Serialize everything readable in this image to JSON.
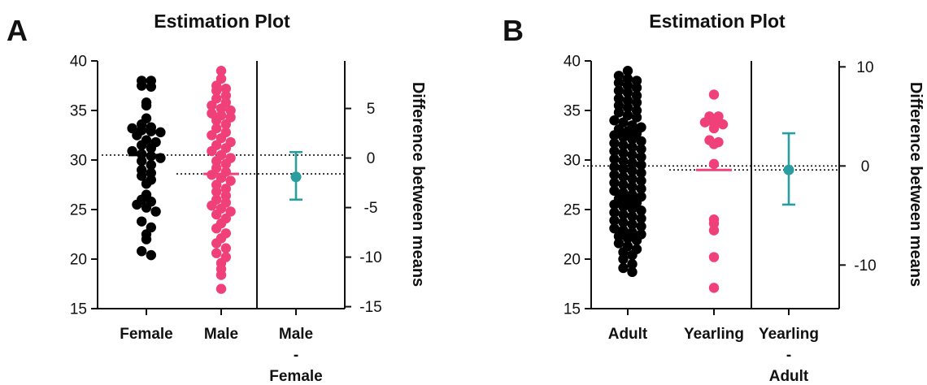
{
  "colors": {
    "group1": "#000000",
    "group2": "#f0407a",
    "difference": "#2a9d9f",
    "axis": "#111111"
  },
  "chart_data": [
    {
      "panel": "A",
      "type": "scatter",
      "title": "Estimation Plot",
      "ylim": [
        15,
        40
      ],
      "yticks": [
        15,
        20,
        25,
        30,
        35,
        40
      ],
      "right_label": "Difference between means",
      "right_ylim": [
        -15.2,
        9.8
      ],
      "right_ticks": [
        5,
        0,
        -5,
        -10,
        -15
      ],
      "categories": [
        {
          "lines": [
            "Female"
          ]
        },
        {
          "lines": [
            "Male"
          ]
        },
        {
          "lines": [
            "Male",
            "-",
            "Female"
          ]
        }
      ],
      "series": [
        {
          "name": "Female",
          "mean": 30.5,
          "values": [
            38,
            38,
            37.5,
            37.4,
            35.8,
            35.5,
            34.2,
            33.6,
            33.3,
            33.2,
            33.0,
            32.9,
            32.8,
            32.5,
            32.0,
            31.8,
            31.5,
            31.2,
            30.9,
            30.6,
            30.4,
            30.2,
            29.9,
            29.5,
            29.0,
            28.7,
            28.4,
            28.0,
            27.6,
            26.5,
            26.0,
            25.8,
            25.5,
            25.2,
            24.8,
            23.8,
            23.2,
            22.5,
            22.0,
            20.8,
            20.4
          ]
        },
        {
          "name": "Male",
          "mean": 28.6,
          "values": [
            39,
            38.2,
            37.5,
            37.2,
            37.0,
            36.5,
            36.2,
            35.8,
            35.5,
            35.2,
            35.0,
            34.7,
            34.5,
            34.3,
            34.0,
            33.6,
            33.2,
            32.8,
            32.5,
            32.2,
            31.8,
            31.5,
            31.2,
            30.9,
            30.5,
            30.2,
            29.9,
            29.6,
            29.2,
            28.8,
            28.5,
            28.2,
            27.9,
            27.5,
            27.1,
            26.8,
            26.4,
            26.0,
            25.7,
            25.4,
            25.1,
            24.8,
            24.5,
            24.1,
            23.6,
            23.1,
            22.6,
            22.1,
            21.6,
            21.1,
            20.6,
            20.2,
            19.6,
            19.0,
            18.4,
            17.0
          ]
        }
      ],
      "difference": {
        "mean": -1.9,
        "ci": [
          -4.2,
          0.6
        ]
      }
    },
    {
      "panel": "B",
      "type": "scatter",
      "title": "Estimation Plot",
      "ylim": [
        15,
        40
      ],
      "yticks": [
        15,
        20,
        25,
        30,
        35,
        40
      ],
      "right_label": "Difference between means",
      "right_ylim": [
        -14.4,
        10.6
      ],
      "right_ticks": [
        10,
        0,
        -10
      ],
      "categories": [
        {
          "lines": [
            "Adult"
          ]
        },
        {
          "lines": [
            "Yearling"
          ]
        },
        {
          "lines": [
            "Yearling",
            "-",
            "Adult"
          ]
        }
      ],
      "series": [
        {
          "name": "Adult",
          "mean": 29.4,
          "values": [
            39.0,
            38.5,
            38.2,
            38.0,
            37.8,
            37.5,
            37.3,
            37.0,
            36.8,
            36.5,
            36.2,
            36.0,
            35.8,
            35.5,
            35.3,
            35.0,
            34.8,
            34.5,
            34.3,
            34.0,
            33.8,
            33.5,
            33.3,
            33.1,
            32.9,
            32.7,
            32.5,
            32.3,
            32.1,
            31.9,
            31.7,
            31.5,
            31.3,
            31.1,
            30.9,
            30.7,
            30.5,
            30.3,
            30.1,
            29.9,
            29.7,
            29.5,
            29.3,
            29.1,
            28.9,
            28.7,
            28.5,
            28.3,
            28.1,
            27.9,
            27.7,
            27.5,
            27.3,
            27.1,
            26.9,
            26.7,
            26.5,
            26.3,
            26.1,
            25.9,
            25.7,
            25.5,
            25.3,
            25.1,
            24.9,
            24.7,
            24.5,
            24.3,
            24.1,
            23.9,
            23.7,
            23.5,
            23.3,
            23.1,
            22.9,
            22.7,
            22.5,
            22.3,
            22.1,
            21.9,
            21.6,
            21.3,
            21.0,
            20.7,
            20.4,
            20.0,
            19.5,
            19.1,
            18.7
          ]
        },
        {
          "name": "Yearling",
          "mean": 29.0,
          "values": [
            36.6,
            34.4,
            34.4,
            33.8,
            33.7,
            33.6,
            33.2,
            32.0,
            31.8,
            31.6,
            29.6,
            24.0,
            23.6,
            22.9,
            20.2,
            17.1
          ]
        }
      ],
      "difference": {
        "mean": -0.4,
        "ci": [
          -3.9,
          3.3
        ]
      }
    }
  ]
}
